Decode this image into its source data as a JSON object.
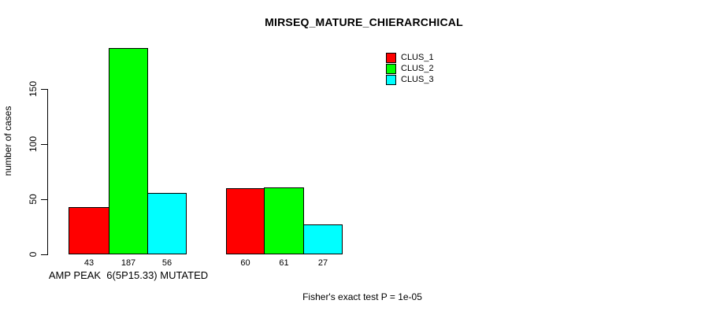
{
  "chart_data": {
    "type": "bar",
    "title": "MIRSEQ_MATURE_CHIERARCHICAL",
    "ylabel": "number of cases",
    "xlabel": "",
    "footnote": "Fisher's exact test P = 1e-05",
    "yticks": [
      0,
      50,
      100,
      150
    ],
    "ylim": [
      0,
      190
    ],
    "grid": false,
    "legend_position": "top-right",
    "bar_border_color": "#000000",
    "background_color": "#ffffff",
    "text_color": "#000000",
    "categories": [
      "AMP PEAK  6(5P15.33) MUTATED",
      ""
    ],
    "groups": [
      {
        "label": "AMP PEAK  6(5P15.33) MUTATED",
        "values": [
          43,
          187,
          56
        ]
      },
      {
        "label": "",
        "values": [
          60,
          61,
          27
        ]
      }
    ],
    "series": [
      {
        "name": "CLUS_1",
        "color": "#ff0000",
        "values": [
          43,
          60
        ]
      },
      {
        "name": "CLUS_2",
        "color": "#00ff00",
        "values": [
          187,
          61
        ]
      },
      {
        "name": "CLUS_3",
        "color": "#00ffff",
        "values": [
          56,
          27
        ]
      }
    ]
  }
}
